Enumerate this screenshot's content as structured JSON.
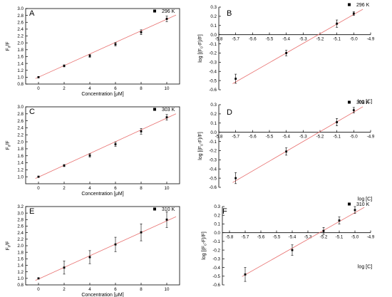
{
  "chart_data": [
    {
      "panel": "A",
      "type": "scatter",
      "legend": "296 K",
      "xlabel": "Concentration [μM]",
      "ylabel": "F0/F",
      "xlim": [
        -1,
        11
      ],
      "ylim": [
        0.8,
        3.0
      ],
      "xticks": [
        0,
        2,
        4,
        6,
        8,
        10
      ],
      "yticks": [
        0.8,
        1.0,
        1.2,
        1.4,
        1.6,
        1.8,
        2.0,
        2.2,
        2.4,
        2.6,
        2.8,
        3.0
      ],
      "x": [
        0,
        2,
        4,
        6,
        8,
        10
      ],
      "y": [
        1.0,
        1.33,
        1.62,
        1.96,
        2.31,
        2.7
      ],
      "err": [
        0.02,
        0.03,
        0.04,
        0.05,
        0.07,
        0.08
      ],
      "fit": {
        "slope": 0.169,
        "intercept": 1.0
      }
    },
    {
      "panel": "B",
      "type": "scatter",
      "legend": "296 K",
      "xlabel": "log [C]",
      "ylabel": "log [(F0-F)/F]",
      "xlim": [
        -5.8,
        -4.9
      ],
      "ylim": [
        -0.6,
        0.3
      ],
      "xticks": [
        -5.8,
        -5.7,
        -5.6,
        -5.5,
        -5.4,
        -5.3,
        -5.2,
        -5.1,
        -5.0,
        -4.9
      ],
      "yticks": [
        -0.6,
        -0.5,
        -0.4,
        -0.3,
        -0.2,
        -0.1,
        0.0,
        0.1,
        0.2,
        0.3
      ],
      "x": [
        -5.7,
        -5.4,
        -5.1,
        -5.0
      ],
      "y": [
        -0.48,
        -0.2,
        0.12,
        0.23
      ],
      "err": [
        0.05,
        0.03,
        0.04,
        0.02
      ],
      "fit": {
        "slope": 1.05,
        "intercept": 5.47
      }
    },
    {
      "panel": "C",
      "type": "scatter",
      "legend": "303 K",
      "xlabel": "Concentration [μM]",
      "ylabel": "F0/F",
      "xlim": [
        -1,
        11
      ],
      "ylim": [
        0.8,
        3.0
      ],
      "xticks": [
        0,
        2,
        4,
        6,
        8,
        10
      ],
      "yticks": [
        1.0,
        1.2,
        1.4,
        1.6,
        1.8,
        2.0,
        2.2,
        2.4,
        2.6,
        2.8,
        3.0
      ],
      "x": [
        0,
        2,
        4,
        6,
        8,
        10
      ],
      "y": [
        1.0,
        1.32,
        1.61,
        1.93,
        2.3,
        2.7
      ],
      "err": [
        0.02,
        0.03,
        0.05,
        0.06,
        0.08,
        0.08
      ],
      "fit": {
        "slope": 0.169,
        "intercept": 0.99
      }
    },
    {
      "panel": "D",
      "type": "scatter",
      "legend": "303 K",
      "xlabel": "log [C]",
      "ylabel": "log [(F0-F)/F]",
      "xlim": [
        -5.8,
        -4.9
      ],
      "ylim": [
        -0.6,
        0.3
      ],
      "xticks": [
        -5.8,
        -5.7,
        -5.6,
        -5.5,
        -5.4,
        -5.3,
        -5.2,
        -5.1,
        -5.0,
        -4.9
      ],
      "yticks": [
        -0.6,
        -0.5,
        -0.4,
        -0.3,
        -0.2,
        -0.1,
        0.0,
        0.1,
        0.2,
        0.3
      ],
      "x": [
        -5.7,
        -5.4,
        -5.1,
        -5.0
      ],
      "y": [
        -0.5,
        -0.21,
        0.11,
        0.24
      ],
      "err": [
        0.06,
        0.04,
        0.04,
        0.03
      ],
      "fit": {
        "slope": 1.07,
        "intercept": 5.57
      }
    },
    {
      "panel": "E",
      "type": "scatter",
      "legend": "310 K",
      "xlabel": "Concentration [μM]",
      "ylabel": "F0/F",
      "xlim": [
        -1,
        11
      ],
      "ylim": [
        0.8,
        3.2
      ],
      "xticks": [
        0,
        2,
        4,
        6,
        8,
        10
      ],
      "yticks": [
        0.8,
        1.0,
        1.2,
        1.4,
        1.6,
        1.8,
        2.0,
        2.2,
        2.4,
        2.6,
        2.8,
        3.0,
        3.2
      ],
      "x": [
        0,
        2,
        4,
        6,
        8,
        10
      ],
      "y": [
        1.0,
        1.33,
        1.65,
        2.04,
        2.41,
        2.8
      ],
      "err": [
        0.02,
        0.2,
        0.2,
        0.22,
        0.26,
        0.24
      ],
      "fit": {
        "slope": 0.178,
        "intercept": 0.98
      }
    },
    {
      "panel": "F",
      "type": "scatter",
      "legend": "310 K",
      "xlabel": "log [C]",
      "ylabel": "log [(F0-F)/F]",
      "xlim": [
        -5.9,
        -4.9
      ],
      "ylim": [
        -0.6,
        0.3
      ],
      "xticks": [
        -5.8,
        -5.7,
        -5.6,
        -5.5,
        -5.4,
        -5.3,
        -5.2,
        -5.1,
        -5.0,
        -4.9
      ],
      "yticks": [
        -0.6,
        -0.5,
        -0.4,
        -0.3,
        -0.2,
        -0.1,
        0.0,
        0.1,
        0.2,
        0.3
      ],
      "x": [
        -5.7,
        -5.4,
        -5.2,
        -5.1,
        -5.0
      ],
      "y": [
        -0.48,
        -0.2,
        0.02,
        0.14,
        0.26
      ],
      "err": [
        0.08,
        0.06,
        0.04,
        0.04,
        0.04
      ],
      "fit": {
        "slope": 1.02,
        "intercept": 5.33
      }
    }
  ]
}
